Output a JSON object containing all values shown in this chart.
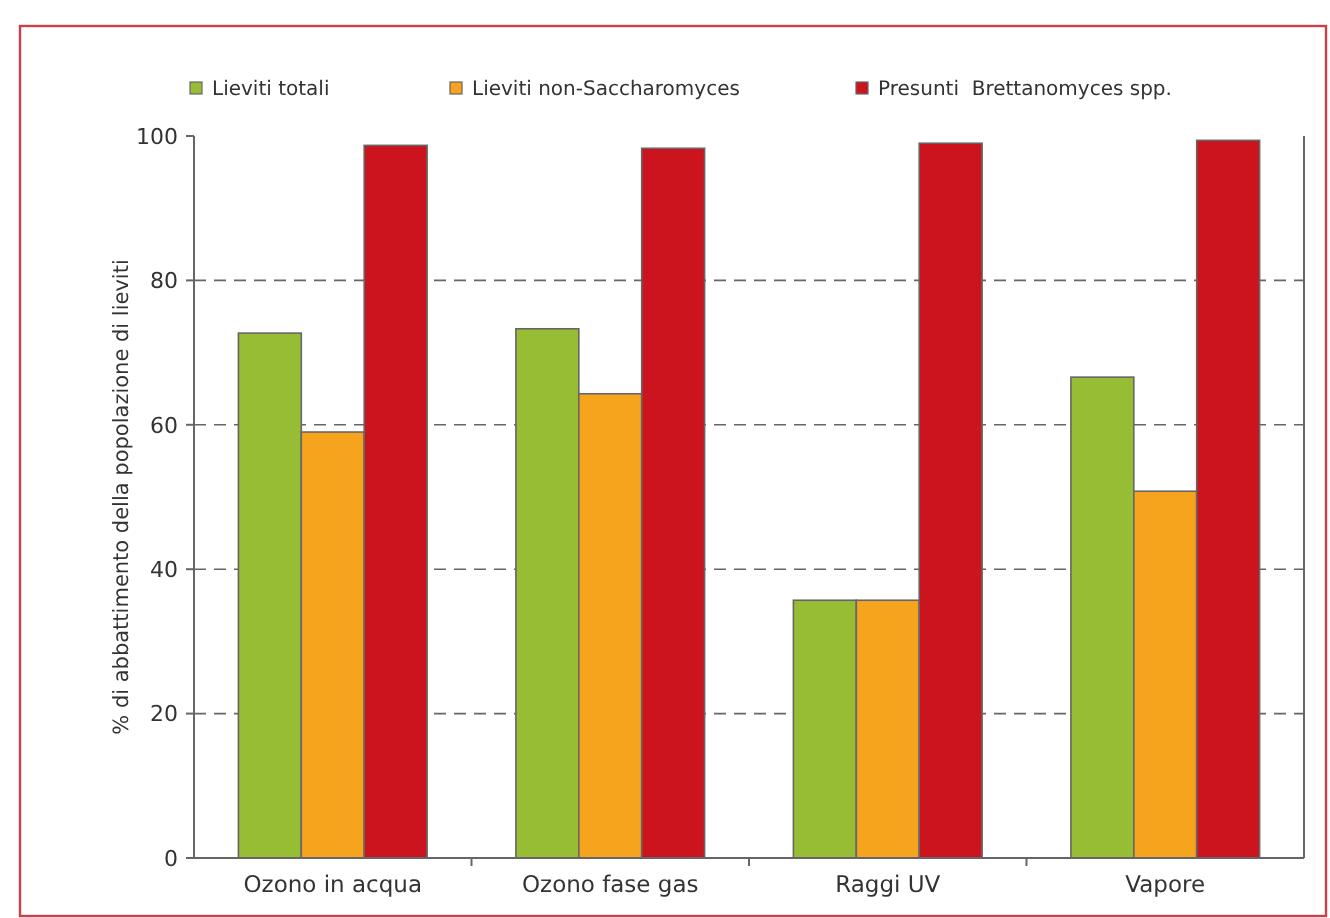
{
  "chart_data": {
    "type": "bar",
    "ylabel": "% di abbattimento della popolazione di lieviti",
    "categories": [
      "Ozono in acqua",
      "Ozono fase gas",
      "Raggi UV",
      "Vapore"
    ],
    "series": [
      {
        "name": "Lieviti totali",
        "color": "#97bd34",
        "values": [
          72.7,
          73.3,
          35.7,
          66.6
        ]
      },
      {
        "name": "Lieviti non-Saccharomyces",
        "color": "#f6a41e",
        "values": [
          59.0,
          64.3,
          35.7,
          50.8
        ]
      },
      {
        "name": "Presunti  Brettanomyces spp.",
        "color": "#cc141e",
        "values": [
          98.7,
          98.3,
          99.0,
          99.4
        ]
      }
    ],
    "ylim": [
      0,
      100
    ],
    "yticks": [
      0,
      20,
      40,
      60,
      80,
      100
    ],
    "grid": "y",
    "legend": "top"
  }
}
